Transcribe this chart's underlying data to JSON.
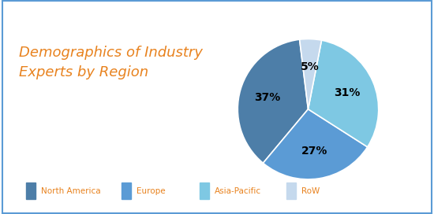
{
  "title": "Demographics of Industry\nExperts by Region",
  "title_color": "#E8821E",
  "title_fontsize": 13,
  "labels": [
    "North America",
    "Europe",
    "Asia-Pacific",
    "RoW"
  ],
  "values": [
    37,
    27,
    31,
    5
  ],
  "colors": [
    "#4D7EA8",
    "#5B9BD5",
    "#7EC8E3",
    "#C5D9ED"
  ],
  "pct_labels": [
    "37%",
    "27%",
    "31%",
    "5%"
  ],
  "legend_text_color": "#E8821E",
  "background_color": "#FFFFFF",
  "border_color": "#5B9BD5",
  "startangle": 97
}
